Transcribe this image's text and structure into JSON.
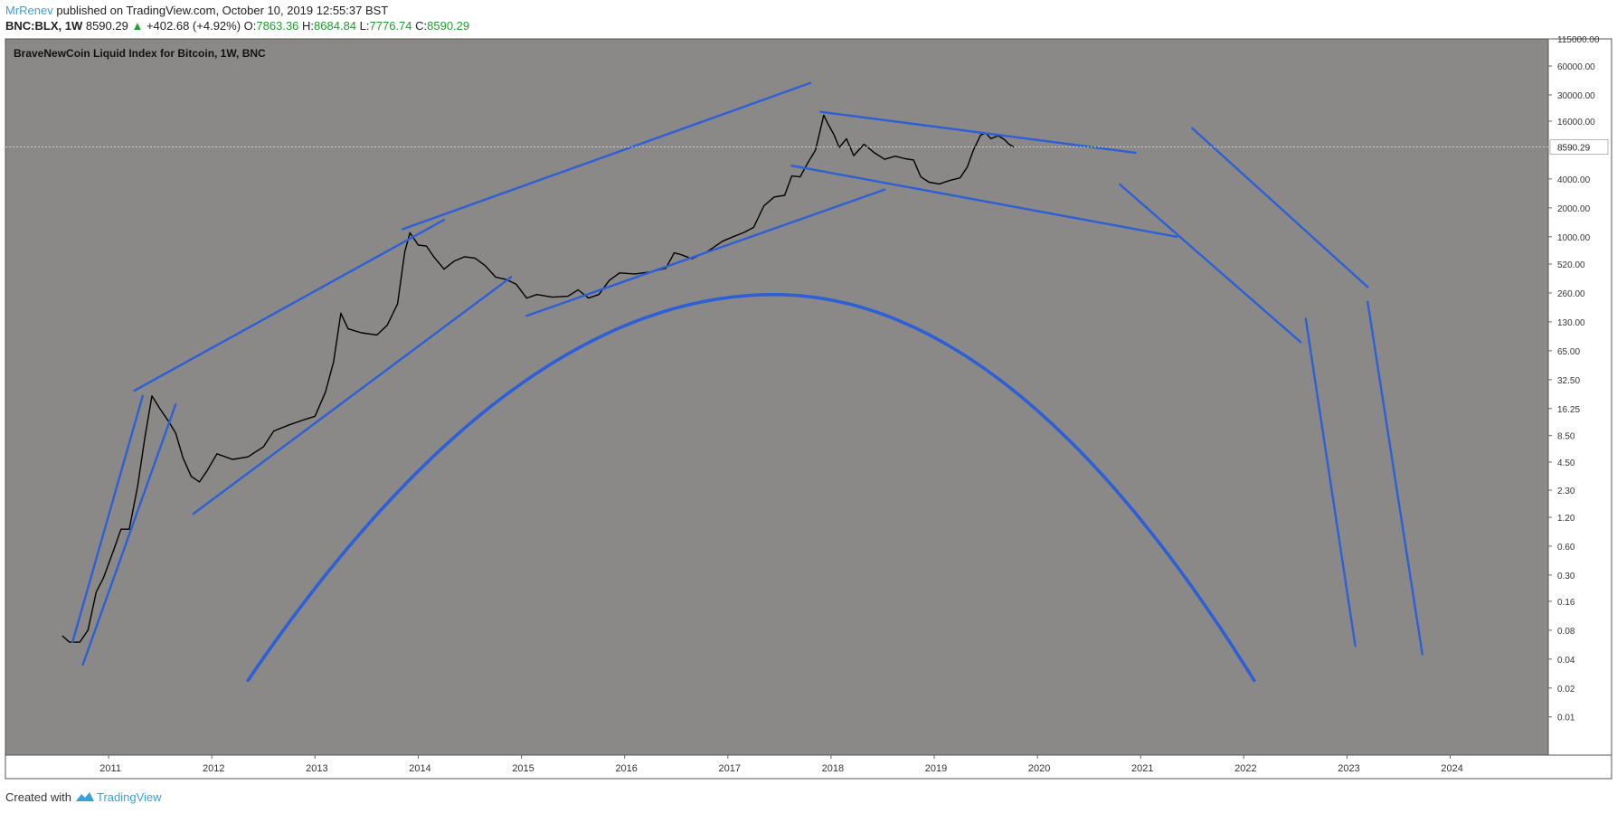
{
  "header": {
    "author": "MrRenev",
    "published_text": " published on TradingView.com, October 10, 2019 12:55:37 BST",
    "symbol": "BNC:BLX, 1W",
    "last": "8590.29",
    "change_arrow": "▲",
    "change": "+402.68 (+4.92%)",
    "open_label": "O:",
    "open": "7863.36",
    "high_label": "H:",
    "high": "8684.84",
    "low_label": "L:",
    "low": "7776.74",
    "close_label": "C:",
    "close": "8590.29"
  },
  "footer": {
    "created_with": "Created with",
    "brand": "TradingView"
  },
  "chart_data": {
    "type": "line",
    "title": "BraveNewCoin Liquid Index for Bitcoin, 1W, BNC",
    "scale": "log",
    "background": "#8b8987",
    "price_color": "#000000",
    "drawing_color": "#2d5fd6",
    "ylim": [
      0.004,
      115000
    ],
    "xlim": [
      2010.0,
      2024.95
    ],
    "y_ticks": [
      {
        "v": 115000,
        "label": "115000.00"
      },
      {
        "v": 60000,
        "label": "60000.00"
      },
      {
        "v": 30000,
        "label": "30000.00"
      },
      {
        "v": 16000,
        "label": "16000.00"
      },
      {
        "v": 4000,
        "label": "4000.00"
      },
      {
        "v": 2000,
        "label": "2000.00"
      },
      {
        "v": 1000,
        "label": "1000.00"
      },
      {
        "v": 520,
        "label": "520.00"
      },
      {
        "v": 260,
        "label": "260.00"
      },
      {
        "v": 130,
        "label": "130.00"
      },
      {
        "v": 65,
        "label": "65.00"
      },
      {
        "v": 32.5,
        "label": "32.50"
      },
      {
        "v": 16.25,
        "label": "16.25"
      },
      {
        "v": 8.5,
        "label": "8.50"
      },
      {
        "v": 4.5,
        "label": "4.50"
      },
      {
        "v": 2.3,
        "label": "2.30"
      },
      {
        "v": 1.2,
        "label": "1.20"
      },
      {
        "v": 0.6,
        "label": "0.60"
      },
      {
        "v": 0.3,
        "label": "0.30"
      },
      {
        "v": 0.16,
        "label": "0.16"
      },
      {
        "v": 0.08,
        "label": "0.08"
      },
      {
        "v": 0.04,
        "label": "0.04"
      },
      {
        "v": 0.02,
        "label": "0.02"
      },
      {
        "v": 0.01,
        "label": "0.01"
      }
    ],
    "x_ticks": [
      "2011",
      "2012",
      "2013",
      "2014",
      "2015",
      "2016",
      "2017",
      "2018",
      "2019",
      "2020",
      "2021",
      "2022",
      "2023",
      "2024"
    ],
    "last_price": 8590.29,
    "last_price_label": "8590.29",
    "price_series": [
      [
        2010.55,
        0.07
      ],
      [
        2010.62,
        0.06
      ],
      [
        2010.72,
        0.06
      ],
      [
        2010.8,
        0.08
      ],
      [
        2010.88,
        0.2
      ],
      [
        2010.95,
        0.28
      ],
      [
        2011.05,
        0.55
      ],
      [
        2011.12,
        0.9
      ],
      [
        2011.2,
        0.9
      ],
      [
        2011.28,
        2.5
      ],
      [
        2011.35,
        8
      ],
      [
        2011.42,
        22
      ],
      [
        2011.5,
        16
      ],
      [
        2011.58,
        12
      ],
      [
        2011.65,
        9
      ],
      [
        2011.72,
        5
      ],
      [
        2011.8,
        3.2
      ],
      [
        2011.88,
        2.8
      ],
      [
        2011.95,
        3.6
      ],
      [
        2012.05,
        5.5
      ],
      [
        2012.2,
        4.8
      ],
      [
        2012.35,
        5.1
      ],
      [
        2012.5,
        6.5
      ],
      [
        2012.6,
        9.5
      ],
      [
        2012.75,
        11
      ],
      [
        2012.9,
        12.5
      ],
      [
        2013.0,
        13.5
      ],
      [
        2013.1,
        24
      ],
      [
        2013.18,
        50
      ],
      [
        2013.25,
        160
      ],
      [
        2013.32,
        110
      ],
      [
        2013.45,
        100
      ],
      [
        2013.6,
        95
      ],
      [
        2013.7,
        120
      ],
      [
        2013.8,
        200
      ],
      [
        2013.87,
        700
      ],
      [
        2013.92,
        1100
      ],
      [
        2014.0,
        820
      ],
      [
        2014.08,
        800
      ],
      [
        2014.15,
        620
      ],
      [
        2014.25,
        460
      ],
      [
        2014.35,
        560
      ],
      [
        2014.45,
        620
      ],
      [
        2014.55,
        600
      ],
      [
        2014.65,
        500
      ],
      [
        2014.75,
        380
      ],
      [
        2014.85,
        360
      ],
      [
        2014.95,
        320
      ],
      [
        2015.05,
        230
      ],
      [
        2015.15,
        250
      ],
      [
        2015.3,
        235
      ],
      [
        2015.45,
        240
      ],
      [
        2015.55,
        280
      ],
      [
        2015.65,
        230
      ],
      [
        2015.75,
        250
      ],
      [
        2015.85,
        350
      ],
      [
        2015.95,
        420
      ],
      [
        2016.1,
        410
      ],
      [
        2016.25,
        430
      ],
      [
        2016.4,
        470
      ],
      [
        2016.48,
        680
      ],
      [
        2016.55,
        650
      ],
      [
        2016.65,
        590
      ],
      [
        2016.8,
        700
      ],
      [
        2016.95,
        900
      ],
      [
        2017.05,
        1000
      ],
      [
        2017.15,
        1100
      ],
      [
        2017.25,
        1250
      ],
      [
        2017.35,
        2100
      ],
      [
        2017.45,
        2600
      ],
      [
        2017.55,
        2700
      ],
      [
        2017.62,
        4300
      ],
      [
        2017.7,
        4200
      ],
      [
        2017.78,
        6000
      ],
      [
        2017.85,
        8000
      ],
      [
        2017.93,
        18500
      ],
      [
        2017.97,
        15000
      ],
      [
        2018.03,
        11500
      ],
      [
        2018.08,
        8500
      ],
      [
        2018.15,
        10500
      ],
      [
        2018.22,
        7000
      ],
      [
        2018.32,
        9200
      ],
      [
        2018.42,
        7500
      ],
      [
        2018.52,
        6400
      ],
      [
        2018.62,
        6900
      ],
      [
        2018.72,
        6500
      ],
      [
        2018.8,
        6300
      ],
      [
        2018.87,
        4200
      ],
      [
        2018.95,
        3700
      ],
      [
        2019.05,
        3550
      ],
      [
        2019.15,
        3850
      ],
      [
        2019.25,
        4100
      ],
      [
        2019.32,
        5300
      ],
      [
        2019.38,
        8000
      ],
      [
        2019.45,
        11500
      ],
      [
        2019.5,
        12000
      ],
      [
        2019.55,
        10500
      ],
      [
        2019.62,
        11300
      ],
      [
        2019.68,
        10300
      ],
      [
        2019.72,
        9300
      ],
      [
        2019.77,
        8590.29
      ]
    ],
    "drawings": {
      "lines": [
        [
          [
            2010.65,
            0.06
          ],
          [
            2011.33,
            22
          ]
        ],
        [
          [
            2010.75,
            0.035
          ],
          [
            2011.65,
            18
          ]
        ],
        [
          [
            2011.25,
            25
          ],
          [
            2014.25,
            1500
          ]
        ],
        [
          [
            2011.82,
            1.3
          ],
          [
            2014.9,
            380
          ]
        ],
        [
          [
            2013.85,
            1200
          ],
          [
            2017.8,
            40000
          ]
        ],
        [
          [
            2015.05,
            150
          ],
          [
            2018.52,
            3100
          ]
        ],
        [
          [
            2017.9,
            20000
          ],
          [
            2020.95,
            7500
          ]
        ],
        [
          [
            2017.62,
            5500
          ],
          [
            2021.35,
            1000
          ]
        ],
        [
          [
            2020.8,
            3500
          ],
          [
            2022.55,
            80
          ]
        ],
        [
          [
            2021.5,
            13500
          ],
          [
            2023.2,
            300
          ]
        ],
        [
          [
            2022.6,
            140
          ],
          [
            2023.08,
            0.055
          ]
        ],
        [
          [
            2023.2,
            210
          ],
          [
            2023.73,
            0.045
          ]
        ]
      ],
      "arc": {
        "peak_year": 2017.45,
        "peak_price": 250,
        "from_year": 2012.35,
        "to_year": 2022.1,
        "endpoint_price": 0.024
      }
    }
  }
}
